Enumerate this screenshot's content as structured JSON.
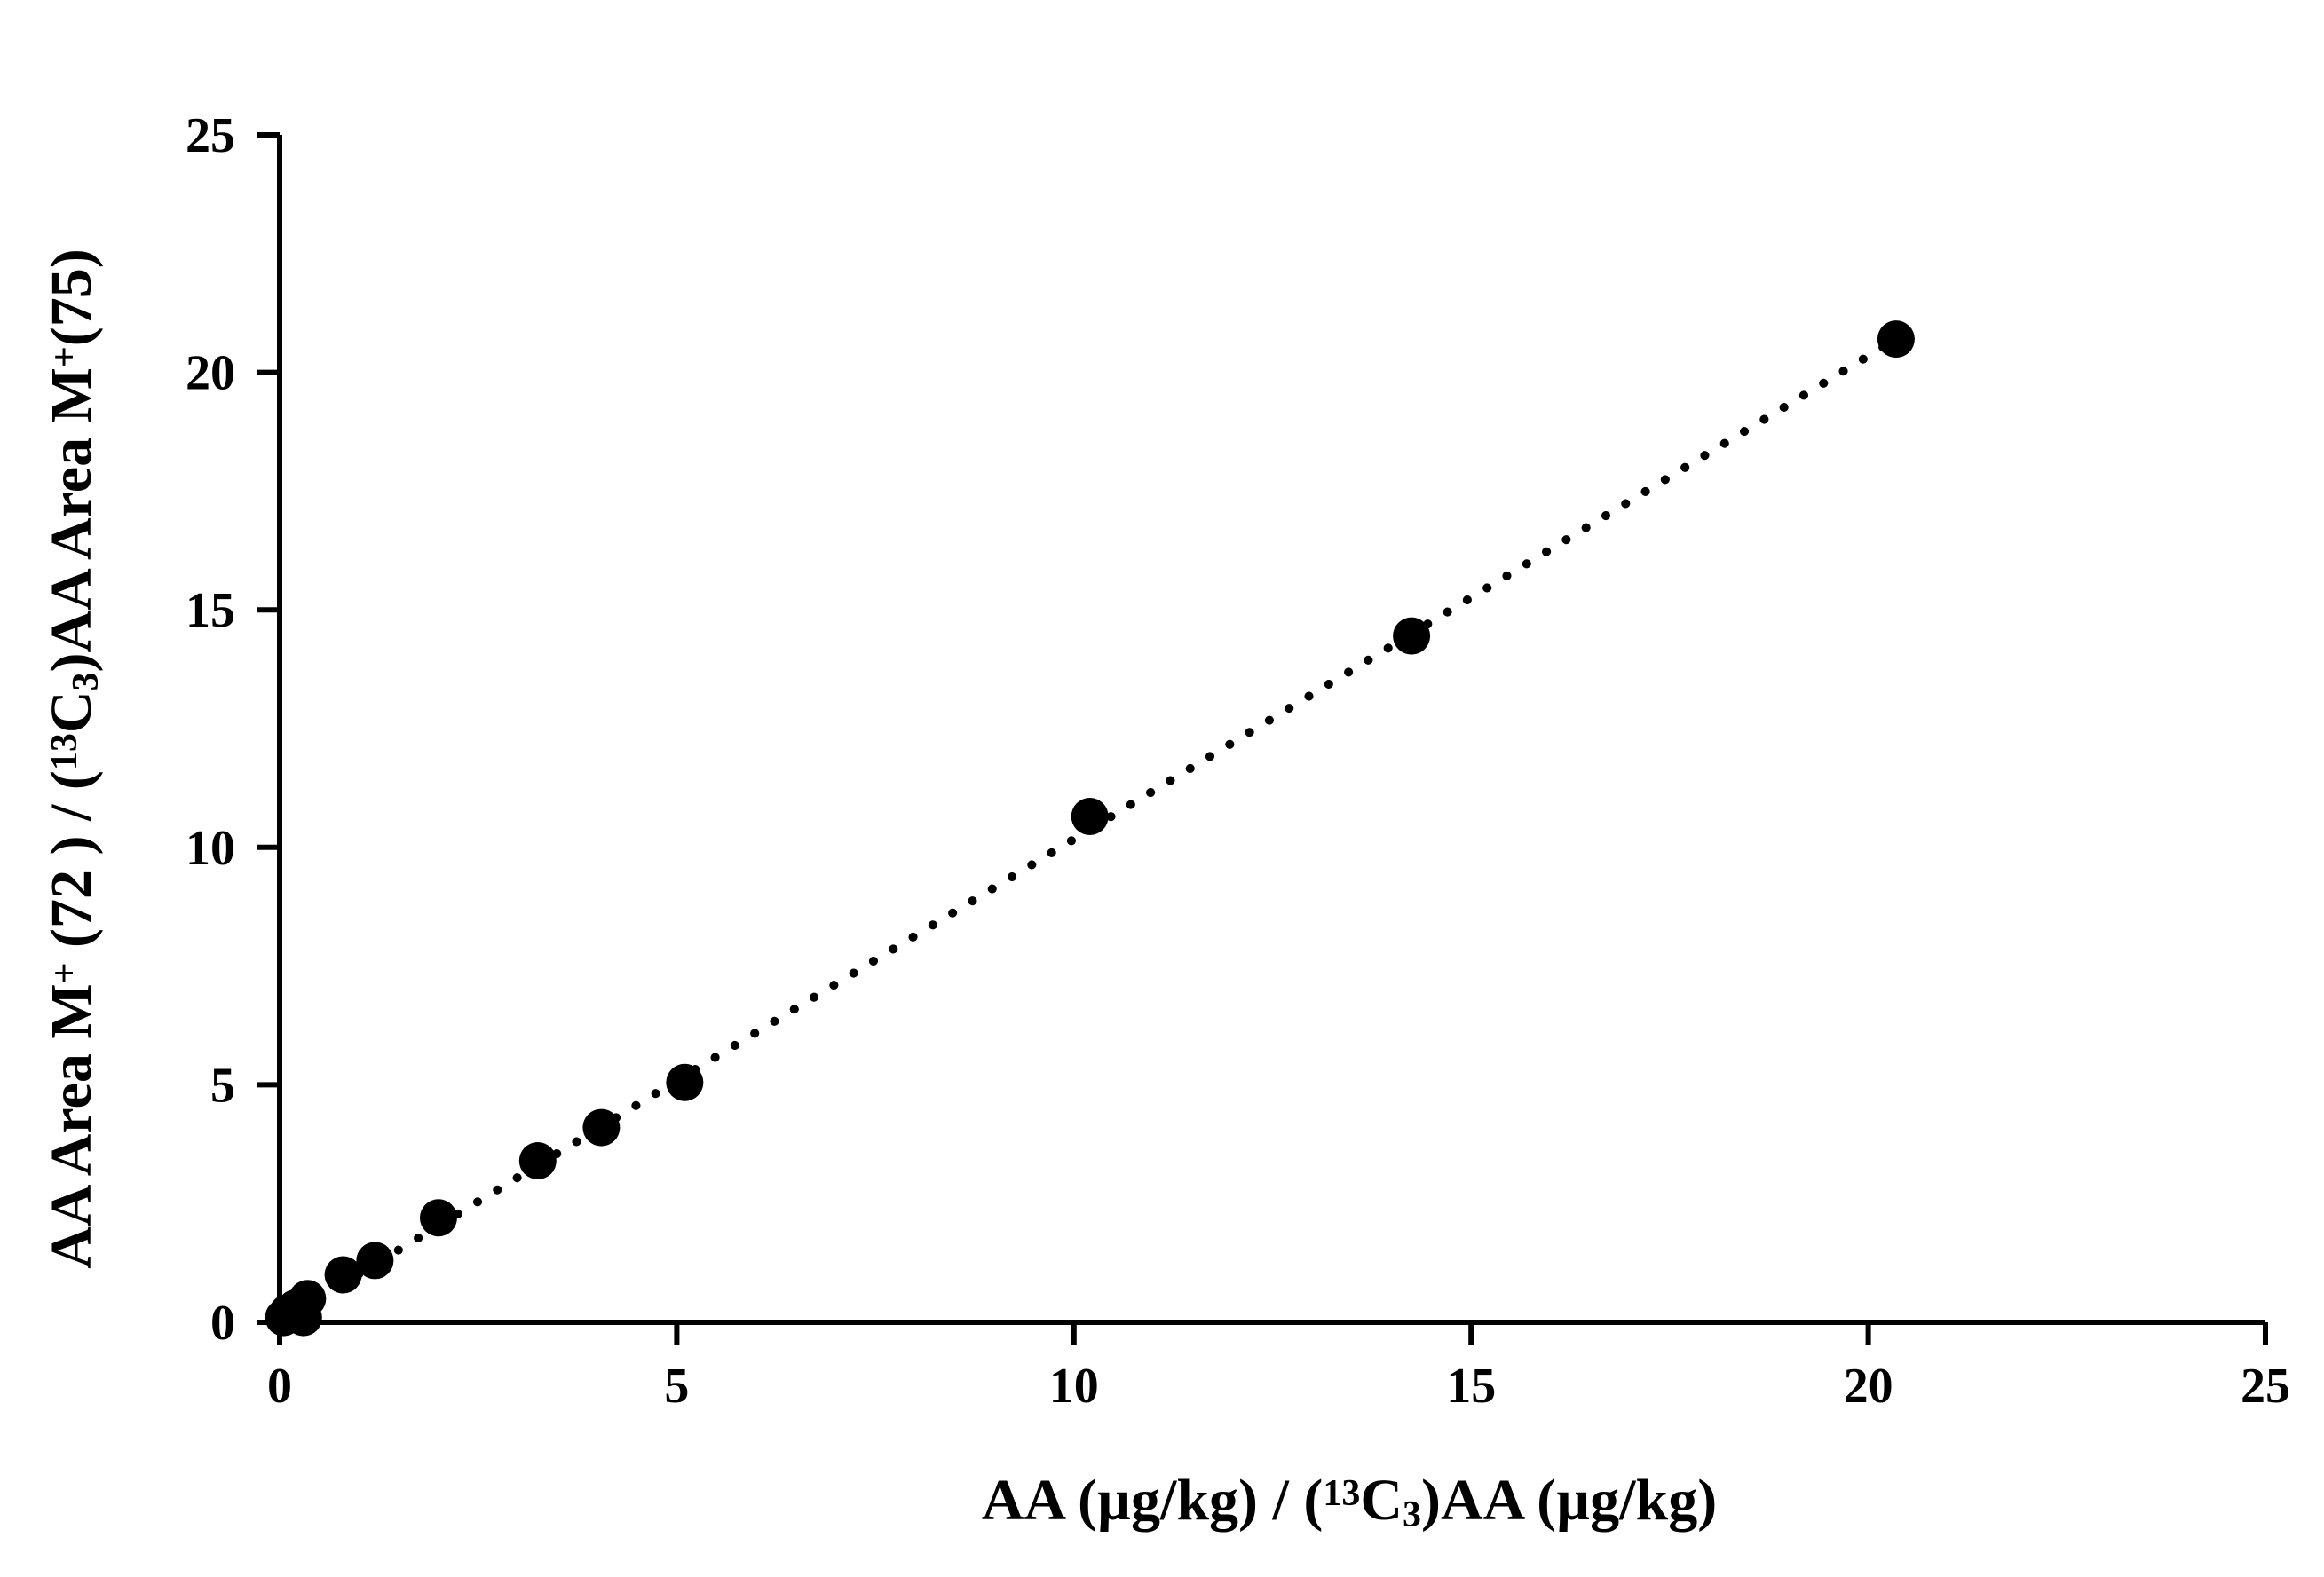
{
  "chart_data": {
    "type": "scatter",
    "title": "",
    "xlabel": {
      "parts": [
        {
          "t": "AA (µg/kg) / ("
        },
        {
          "t": "13",
          "s": "sup"
        },
        {
          "t": "C"
        },
        {
          "t": "3",
          "s": "sub"
        },
        {
          "t": ")AA (µg/kg)"
        }
      ]
    },
    "ylabel": {
      "parts": [
        {
          "t": "AA Area M"
        },
        {
          "t": "+",
          "s": "sup"
        },
        {
          "t": " (72 ) / ("
        },
        {
          "t": "13",
          "s": "sup"
        },
        {
          "t": "C"
        },
        {
          "t": "3",
          "s": "sub"
        },
        {
          "t": ")AA Area M"
        },
        {
          "t": "+",
          "s": "sup"
        },
        {
          "t": "(75)"
        }
      ]
    },
    "xlim": [
      0,
      25
    ],
    "ylim": [
      0,
      25
    ],
    "xticks": [
      "0",
      "5",
      "10",
      "15",
      "20",
      "25"
    ],
    "yticks": [
      "0",
      "5",
      "10",
      "15",
      "20",
      "25"
    ],
    "grid": false,
    "legend": "none",
    "series": [
      {
        "marker_color": "#000000",
        "points": [
          {
            "x": 0.05,
            "y": 0.1
          },
          {
            "x": 0.1,
            "y": 0.2
          },
          {
            "x": 0.2,
            "y": 0.3
          },
          {
            "x": 0.3,
            "y": 0.1
          },
          {
            "x": 0.35,
            "y": 0.5
          },
          {
            "x": 0.8,
            "y": 1.0
          },
          {
            "x": 1.2,
            "y": 1.3
          },
          {
            "x": 2.0,
            "y": 2.2
          },
          {
            "x": 3.25,
            "y": 3.4
          },
          {
            "x": 4.05,
            "y": 4.1
          },
          {
            "x": 5.1,
            "y": 5.05
          },
          {
            "x": 10.2,
            "y": 10.65
          },
          {
            "x": 14.25,
            "y": 14.45
          },
          {
            "x": 20.35,
            "y": 20.7
          }
        ]
      }
    ],
    "trendline": {
      "style": "dotted",
      "color": "#000000",
      "from": {
        "x": 0,
        "y": 0
      },
      "to": {
        "x": 20.35,
        "y": 20.7
      }
    }
  }
}
